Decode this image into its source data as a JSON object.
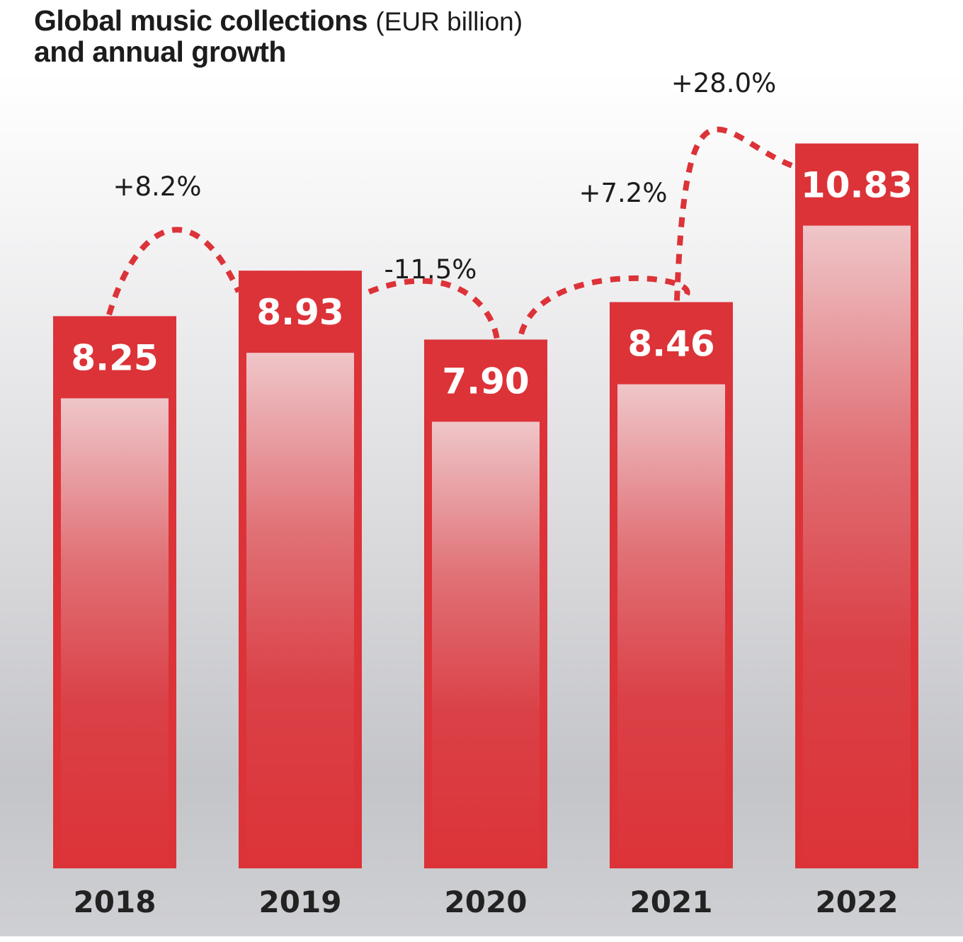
{
  "title": {
    "bold": "Global music collections",
    "unit": "(EUR billion)",
    "line2": "and annual growth"
  },
  "colors": {
    "bar": "#dc3338",
    "bar_highlight": "#efc6c9",
    "text": "#1c1c1c",
    "value_text": "#ffffff"
  },
  "chart_data": {
    "type": "bar",
    "title": "Global music collections (EUR billion) and annual growth",
    "categories": [
      "2018",
      "2019",
      "2020",
      "2021",
      "2022"
    ],
    "values": [
      8.25,
      8.93,
      7.9,
      8.46,
      10.83
    ],
    "value_labels": [
      "8.25",
      "8.93",
      "7.90",
      "8.46",
      "10.83"
    ],
    "growth": [
      {
        "from": "2018",
        "to": "2019",
        "label": "+8.2%"
      },
      {
        "from": "2019",
        "to": "2020",
        "label": "-11.5%"
      },
      {
        "from": "2020",
        "to": "2021",
        "label": "+7.2%"
      },
      {
        "from": "2021",
        "to": "2022",
        "label": "+28.0%"
      }
    ],
    "xlabel": "",
    "ylabel": "",
    "grid": false,
    "legend": "none"
  }
}
